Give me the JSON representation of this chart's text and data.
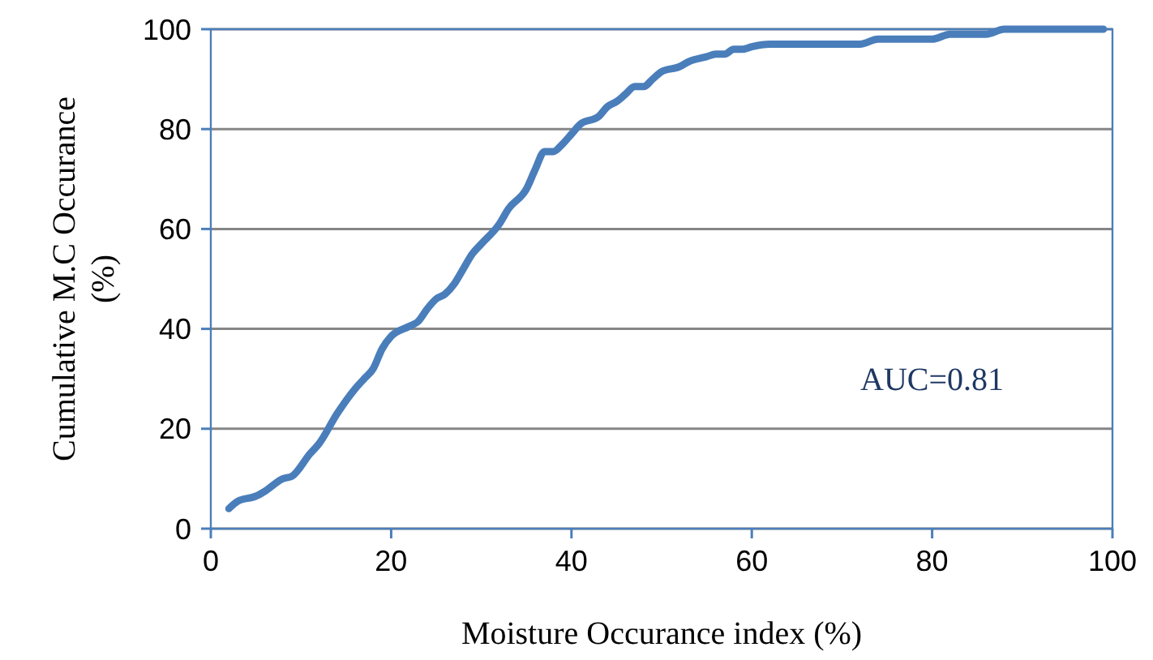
{
  "chart_data": {
    "type": "line",
    "xlabel": "Moisture Occurance index (%)",
    "ylabel": "Cumulative M.C Occurance\n(%)",
    "xlim": [
      0,
      100
    ],
    "ylim": [
      0,
      100
    ],
    "xticks": [
      0,
      20,
      40,
      60,
      80,
      100
    ],
    "yticks": [
      0,
      20,
      40,
      60,
      80,
      100
    ],
    "grid": "y",
    "marker": "none",
    "line_style": "solid",
    "annotations": [
      "AUC=0.81"
    ],
    "series": [
      {
        "color": "#4a7ebb",
        "x": [
          2,
          3,
          5,
          6,
          8,
          9,
          11,
          12,
          14,
          16,
          17,
          18,
          19,
          20,
          22,
          23,
          24,
          25,
          26,
          27,
          28,
          29,
          30,
          32,
          33,
          35,
          36,
          37,
          38,
          39,
          40,
          41,
          43,
          44,
          45,
          46,
          47,
          48,
          49,
          50,
          52,
          53,
          55,
          56,
          57,
          58,
          59,
          60,
          62,
          72,
          74,
          80,
          82,
          86,
          88,
          99
        ],
        "values": [
          4,
          5.5,
          6.5,
          7.5,
          10,
          10.5,
          15,
          17,
          23,
          28,
          30,
          32,
          36,
          38.5,
          40.5,
          41.5,
          44,
          46,
          47,
          49,
          52,
          55,
          57,
          61,
          64,
          68,
          72,
          75.5,
          75.5,
          77,
          79,
          81,
          82.5,
          84.5,
          85.5,
          87,
          88.5,
          88.5,
          90,
          91.5,
          92.5,
          93.5,
          94.5,
          95,
          95,
          96,
          96,
          96.5,
          97,
          97,
          98,
          98,
          99,
          99,
          100,
          100
        ]
      }
    ]
  }
}
